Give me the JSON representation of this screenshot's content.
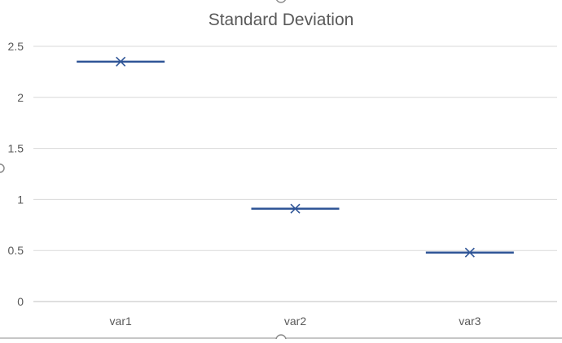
{
  "chart_data": {
    "type": "box",
    "title": "Standard Deviation",
    "categories": [
      "var1",
      "var2",
      "var3"
    ],
    "values": [
      2.35,
      0.91,
      0.48
    ],
    "ylim": [
      0,
      2.5
    ],
    "yticks": [
      "0",
      "0.5",
      "1",
      "1.5",
      "2",
      "2.5"
    ],
    "grid": true,
    "legend": "none",
    "colors": {
      "series": "#2f5597",
      "grid": "#d9d9d9",
      "text": "#595959"
    }
  }
}
